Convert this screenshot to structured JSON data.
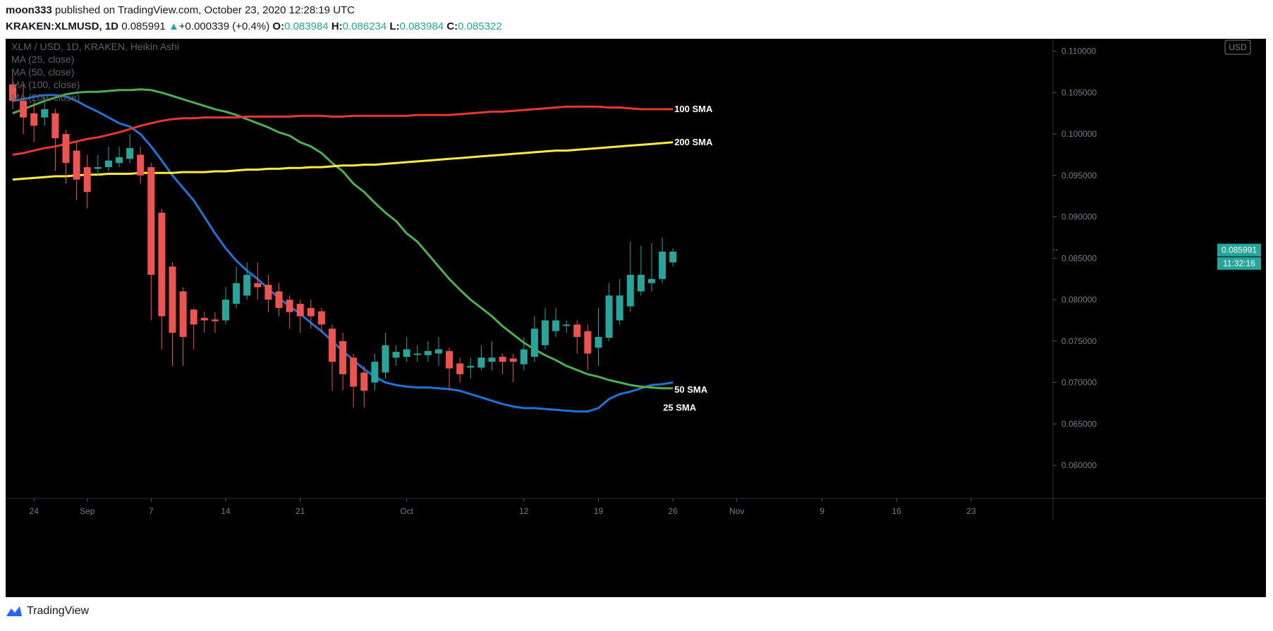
{
  "header": {
    "author": "moon333",
    "published_text": "published on TradingView.com, October 23, 2020 12:28:19 UTC",
    "symbol": "KRAKEN:XLMUSD, 1D",
    "last": "0.085991",
    "change": "+0.000339 (+0.4%)",
    "o_label": "O:",
    "o": "0.083984",
    "h_label": "H:",
    "h": "0.086234",
    "l_label": "L:",
    "l": "0.083984",
    "c_label": "C:",
    "c": "0.085322"
  },
  "legend": {
    "title": "XLM / USD, 1D, KRAKEN, Heikin Ashi",
    "items": [
      "MA (25, close)",
      "MA (50, close)",
      "MA (100, close)",
      "MA (200, close)"
    ]
  },
  "price_badge": "0.085991",
  "countdown": "11:32:16",
  "currency_badge": "USD",
  "footer_brand": "TradingView",
  "colors": {
    "up": "#26a69a",
    "down": "#ef5350",
    "ma25": "#1e74d6",
    "ma50": "#4caf50",
    "ma100": "#e8372f",
    "ma200": "#ffeb3b"
  },
  "chart_data": {
    "type": "candlestick",
    "title": "XLM / USD, 1D, KRAKEN, Heikin Ashi",
    "ylim": [
      0.056,
      0.1115
    ],
    "y_ticks": [
      "0.060000",
      "0.065000",
      "0.070000",
      "0.075000",
      "0.080000",
      "0.085000",
      "0.090000",
      "0.095000",
      "0.100000",
      "0.105000",
      "0.110000"
    ],
    "x_ticks": [
      {
        "i": 2,
        "label": "24"
      },
      {
        "i": 7,
        "label": "Sep"
      },
      {
        "i": 13,
        "label": "7"
      },
      {
        "i": 20,
        "label": "14"
      },
      {
        "i": 27,
        "label": "21"
      },
      {
        "i": 37,
        "label": "Oct"
      },
      {
        "i": 48,
        "label": "12"
      },
      {
        "i": 55,
        "label": "19"
      },
      {
        "i": 62,
        "label": "26"
      },
      {
        "i": 68,
        "label": "Nov"
      },
      {
        "i": 76,
        "label": "9"
      },
      {
        "i": 83,
        "label": "16"
      },
      {
        "i": 90,
        "label": "23"
      }
    ],
    "candles": [
      [
        0.106,
        0.104,
        0.1075,
        0.103
      ],
      [
        0.104,
        0.102,
        0.106,
        0.1
      ],
      [
        0.1025,
        0.101,
        0.104,
        0.099
      ],
      [
        0.102,
        0.103,
        0.1045,
        0.101
      ],
      [
        0.1025,
        0.0995,
        0.103,
        0.0955
      ],
      [
        0.1,
        0.0965,
        0.1005,
        0.094
      ],
      [
        0.098,
        0.0945,
        0.099,
        0.092
      ],
      [
        0.096,
        0.093,
        0.0975,
        0.091
      ],
      [
        0.0958,
        0.096,
        0.0975,
        0.095
      ],
      [
        0.096,
        0.0968,
        0.0985,
        0.0955
      ],
      [
        0.0965,
        0.0972,
        0.0985,
        0.096
      ],
      [
        0.097,
        0.0983,
        0.1,
        0.0965
      ],
      [
        0.0975,
        0.095,
        0.0985,
        0.094
      ],
      [
        0.096,
        0.083,
        0.0965,
        0.0775
      ],
      [
        0.0905,
        0.078,
        0.091,
        0.074
      ],
      [
        0.084,
        0.076,
        0.0845,
        0.072
      ],
      [
        0.081,
        0.0755,
        0.0815,
        0.072
      ],
      [
        0.0788,
        0.077,
        0.079,
        0.074
      ],
      [
        0.0778,
        0.0775,
        0.0785,
        0.076
      ],
      [
        0.0776,
        0.0774,
        0.0785,
        0.076
      ],
      [
        0.0775,
        0.08,
        0.0815,
        0.077
      ],
      [
        0.0795,
        0.082,
        0.084,
        0.079
      ],
      [
        0.0805,
        0.083,
        0.0845,
        0.08
      ],
      [
        0.082,
        0.0815,
        0.0845,
        0.08
      ],
      [
        0.0818,
        0.08,
        0.083,
        0.0785
      ],
      [
        0.081,
        0.079,
        0.082,
        0.078
      ],
      [
        0.08,
        0.0785,
        0.0805,
        0.0765
      ],
      [
        0.0795,
        0.078,
        0.08,
        0.076
      ],
      [
        0.079,
        0.078,
        0.08,
        0.0765
      ],
      [
        0.0786,
        0.077,
        0.079,
        0.076
      ],
      [
        0.0765,
        0.0725,
        0.077,
        0.069
      ],
      [
        0.075,
        0.071,
        0.076,
        0.069
      ],
      [
        0.073,
        0.0695,
        0.0735,
        0.067
      ],
      [
        0.0712,
        0.069,
        0.072,
        0.067
      ],
      [
        0.07,
        0.0725,
        0.0735,
        0.069
      ],
      [
        0.0712,
        0.0745,
        0.076,
        0.0705
      ],
      [
        0.073,
        0.0737,
        0.0745,
        0.072
      ],
      [
        0.0731,
        0.074,
        0.0755,
        0.0725
      ],
      [
        0.0735,
        0.0735,
        0.0745,
        0.0725
      ],
      [
        0.0733,
        0.0738,
        0.075,
        0.0725
      ],
      [
        0.0735,
        0.074,
        0.0755,
        0.072
      ],
      [
        0.0738,
        0.0717,
        0.0742,
        0.069
      ],
      [
        0.0723,
        0.071,
        0.073,
        0.07
      ],
      [
        0.0718,
        0.072,
        0.073,
        0.0705
      ],
      [
        0.0718,
        0.073,
        0.0745,
        0.0715
      ],
      [
        0.0725,
        0.073,
        0.075,
        0.0715
      ],
      [
        0.0731,
        0.0725,
        0.0735,
        0.071
      ],
      [
        0.0729,
        0.0725,
        0.0735,
        0.07
      ],
      [
        0.0722,
        0.074,
        0.0755,
        0.0715
      ],
      [
        0.0731,
        0.0765,
        0.078,
        0.0725
      ],
      [
        0.0745,
        0.0775,
        0.079,
        0.074
      ],
      [
        0.0762,
        0.0775,
        0.079,
        0.0755
      ],
      [
        0.077,
        0.077,
        0.0775,
        0.076
      ],
      [
        0.077,
        0.0755,
        0.0775,
        0.0735
      ],
      [
        0.0762,
        0.0735,
        0.077,
        0.0715
      ],
      [
        0.0742,
        0.0755,
        0.079,
        0.072
      ],
      [
        0.0754,
        0.0805,
        0.082,
        0.075
      ],
      [
        0.0775,
        0.0805,
        0.0825,
        0.077
      ],
      [
        0.0792,
        0.083,
        0.087,
        0.0785
      ],
      [
        0.081,
        0.083,
        0.0865,
        0.0805
      ],
      [
        0.082,
        0.0825,
        0.0868,
        0.081
      ],
      [
        0.0825,
        0.0858,
        0.0875,
        0.082
      ],
      [
        0.0845,
        0.0858,
        0.0862,
        0.084
      ]
    ],
    "series": [
      {
        "name": "MA (25, close)",
        "values": [
          0.104,
          0.1042,
          0.1045,
          0.1047,
          0.1047,
          0.1045,
          0.104,
          0.1033,
          0.1027,
          0.102,
          0.1013,
          0.1009,
          0.1,
          0.0985,
          0.0968,
          0.095,
          0.0935,
          0.092,
          0.09,
          0.088,
          0.0862,
          0.0847,
          0.0835,
          0.0825,
          0.0813,
          0.0802,
          0.0792,
          0.0783,
          0.0772,
          0.0762,
          0.075,
          0.0738,
          0.0727,
          0.0716,
          0.0707,
          0.07,
          0.0697,
          0.0695,
          0.0694,
          0.0694,
          0.0693,
          0.0692,
          0.069,
          0.0686,
          0.0682,
          0.0678,
          0.0674,
          0.0671,
          0.0669,
          0.0669,
          0.0668,
          0.0667,
          0.0666,
          0.0665,
          0.0665,
          0.0669,
          0.068,
          0.0686,
          0.0689,
          0.0693,
          0.0697,
          0.0698,
          0.07
        ]
      },
      {
        "name": "MA (50, close)",
        "values": [
          0.1025,
          0.103,
          0.1035,
          0.104,
          0.1044,
          0.1048,
          0.105,
          0.1051,
          0.1051,
          0.1052,
          0.1053,
          0.1053,
          0.1054,
          0.1053,
          0.105,
          0.1046,
          0.1042,
          0.1038,
          0.1034,
          0.103,
          0.1027,
          0.1023,
          0.1018,
          0.1013,
          0.1008,
          0.1002,
          0.0998,
          0.099,
          0.0985,
          0.0977,
          0.0965,
          0.0955,
          0.094,
          0.093,
          0.0917,
          0.0905,
          0.0895,
          0.088,
          0.087,
          0.0855,
          0.084,
          0.0825,
          0.0812,
          0.08,
          0.079,
          0.078,
          0.0768,
          0.0758,
          0.0748,
          0.074,
          0.0733,
          0.0727,
          0.072,
          0.0715,
          0.071,
          0.0707,
          0.0703,
          0.07,
          0.0697,
          0.0695,
          0.0694,
          0.0693,
          0.0693
        ]
      },
      {
        "name": "MA (100, close)",
        "values": [
          0.0975,
          0.0977,
          0.098,
          0.0983,
          0.0985,
          0.0988,
          0.0991,
          0.0994,
          0.0996,
          0.0999,
          0.1002,
          0.1006,
          0.101,
          0.1013,
          0.1016,
          0.1018,
          0.1019,
          0.1019,
          0.102,
          0.102,
          0.102,
          0.102,
          0.1021,
          0.1021,
          0.1021,
          0.1021,
          0.1021,
          0.1022,
          0.1022,
          0.1022,
          0.1021,
          0.1021,
          0.1022,
          0.1022,
          0.1022,
          0.1022,
          0.1022,
          0.1022,
          0.1023,
          0.1023,
          0.1023,
          0.1023,
          0.1024,
          0.1025,
          0.1026,
          0.1027,
          0.1027,
          0.1028,
          0.1029,
          0.103,
          0.1031,
          0.1032,
          0.1033,
          0.1033,
          0.1033,
          0.1033,
          0.1032,
          0.1032,
          0.1031,
          0.103,
          0.103,
          0.103,
          0.103
        ]
      },
      {
        "name": "MA (200, close)",
        "values": [
          0.0945,
          0.0946,
          0.0947,
          0.0948,
          0.0949,
          0.0949,
          0.095,
          0.0951,
          0.0951,
          0.0952,
          0.0952,
          0.0952,
          0.0953,
          0.0953,
          0.0953,
          0.0953,
          0.0954,
          0.0954,
          0.0954,
          0.0955,
          0.0955,
          0.0956,
          0.0957,
          0.0957,
          0.0958,
          0.0958,
          0.0959,
          0.0959,
          0.096,
          0.096,
          0.0961,
          0.0962,
          0.0962,
          0.0963,
          0.0963,
          0.0964,
          0.0965,
          0.0966,
          0.0967,
          0.0968,
          0.0969,
          0.097,
          0.0971,
          0.0972,
          0.0973,
          0.0974,
          0.0975,
          0.0976,
          0.0977,
          0.0978,
          0.0979,
          0.098,
          0.098,
          0.0981,
          0.0982,
          0.0983,
          0.0984,
          0.0985,
          0.0986,
          0.0987,
          0.0988,
          0.0989,
          0.099
        ]
      }
    ],
    "annotations": [
      {
        "label": "100 SMA",
        "series": 2
      },
      {
        "label": "200 SMA",
        "series": 3
      },
      {
        "label": "50 SMA",
        "series": 1
      },
      {
        "label": "25 SMA",
        "series": 0
      }
    ]
  }
}
